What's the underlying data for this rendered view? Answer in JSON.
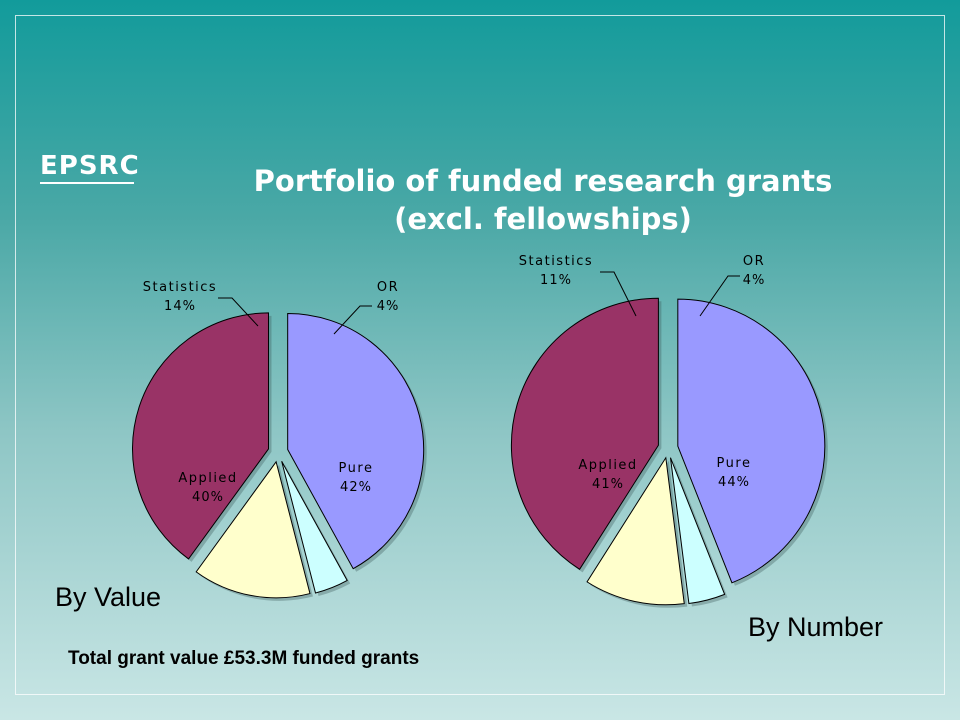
{
  "logo_text": "EPSRC",
  "title_line1": "Portfolio of funded research grants",
  "title_line2": "(excl. fellowships)",
  "caption_value": "By Value",
  "caption_number": "By Number",
  "footnote": "Total grant value £53.3M  funded grants",
  "chart_data": [
    {
      "type": "pie",
      "caption": "By Value",
      "labels": [
        "Pure",
        "OR",
        "Statistics",
        "Applied"
      ],
      "values": [
        42,
        4,
        14,
        40
      ],
      "value_labels": [
        "42%",
        "4%",
        "14%",
        "40%"
      ],
      "colors": [
        "#9999ff",
        "#ccffff",
        "#ffffcc",
        "#993366"
      ],
      "exploded": true
    },
    {
      "type": "pie",
      "caption": "By Number",
      "labels": [
        "Pure",
        "OR",
        "Statistics",
        "Applied"
      ],
      "values": [
        44,
        4,
        11,
        41
      ],
      "value_labels": [
        "44%",
        "4%",
        "11%",
        "41%"
      ],
      "colors": [
        "#9999ff",
        "#ccffff",
        "#ffffcc",
        "#993366"
      ],
      "exploded": true
    }
  ]
}
